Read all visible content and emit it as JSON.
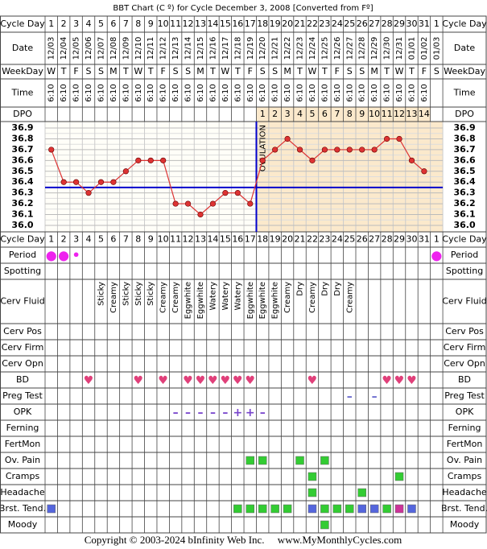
{
  "title": "BBT Chart (C º) for Cycle December 3, 2008  [Converted from Fº]",
  "labels": {
    "cycle_day": "Cycle Day",
    "date": "Date",
    "weekday": "WeekDay",
    "time": "Time",
    "dpo": "DPO"
  },
  "cycle_days": [
    1,
    2,
    3,
    4,
    5,
    6,
    7,
    8,
    9,
    10,
    11,
    12,
    13,
    14,
    15,
    16,
    17,
    18,
    19,
    20,
    21,
    22,
    23,
    24,
    25,
    26,
    27,
    28,
    29,
    30,
    31,
    1
  ],
  "dates": [
    "12/03",
    "12/04",
    "12/05",
    "12/06",
    "12/07",
    "12/08",
    "12/09",
    "12/10",
    "12/11",
    "12/12",
    "12/13",
    "12/14",
    "12/15",
    "12/16",
    "12/17",
    "12/18",
    "12/19",
    "12/20",
    "12/21",
    "12/22",
    "12/23",
    "12/24",
    "12/25",
    "12/26",
    "12/27",
    "12/28",
    "12/29",
    "12/30",
    "12/31",
    "01/01",
    "01/02",
    "01/03"
  ],
  "weekdays": [
    "W",
    "T",
    "F",
    "S",
    "S",
    "M",
    "T",
    "W",
    "T",
    "F",
    "S",
    "S",
    "M",
    "T",
    "W",
    "T",
    "F",
    "S",
    "S",
    "M",
    "T",
    "W",
    "T",
    "F",
    "S",
    "S",
    "M",
    "T",
    "W",
    "T",
    "F",
    "S"
  ],
  "times": [
    "6:10",
    "6:10",
    "6:10",
    "6:10",
    "6:10",
    "6:10",
    "6:10",
    "6:10",
    "6:10",
    "6:10",
    "6:10",
    "6:10",
    "6:10",
    "6:10",
    "6:10",
    "6:10",
    "6:10",
    "6:10",
    "6:10",
    "6:10",
    "6:10",
    "6:10",
    "6:10",
    "6:10",
    "6:10",
    "6:10",
    "6:10",
    "6:10",
    "6:10",
    "6:10",
    "6:10",
    null
  ],
  "dpo": [
    null,
    null,
    null,
    null,
    null,
    null,
    null,
    null,
    null,
    null,
    null,
    null,
    null,
    null,
    null,
    null,
    null,
    1,
    2,
    3,
    4,
    5,
    6,
    7,
    8,
    9,
    10,
    11,
    12,
    13,
    14,
    null
  ],
  "chart_data": {
    "type": "line",
    "color": "#dd3333",
    "values": [
      36.7,
      36.4,
      36.4,
      36.3,
      36.4,
      36.4,
      36.5,
      36.6,
      36.6,
      36.6,
      36.2,
      36.2,
      36.1,
      36.2,
      36.3,
      36.3,
      36.2,
      36.6,
      36.7,
      36.8,
      36.7,
      36.6,
      36.7,
      36.7,
      36.7,
      36.7,
      36.7,
      36.8,
      36.8,
      36.6,
      36.5,
      null
    ],
    "ylim": [
      35.94,
      36.96
    ],
    "yticks": [
      36.9,
      36.8,
      36.7,
      36.6,
      36.5,
      36.4,
      36.3,
      36.2,
      36.1,
      {
        "value": 36,
        "label": "36.0"
      }
    ],
    "grid": true,
    "coverline": 36.35,
    "coverline_color": "#0000cc",
    "ovulation_day": 17,
    "ovulation_label": "OVULATION",
    "luteal_color": "#fbe9cc"
  },
  "rows": [
    {
      "label": "Period",
      "color": "#ee22ee",
      "symbols": [
        "●",
        "●",
        "•",
        null,
        null,
        null,
        null,
        null,
        null,
        null,
        null,
        null,
        null,
        null,
        null,
        null,
        null,
        null,
        null,
        null,
        null,
        null,
        null,
        null,
        null,
        null,
        null,
        null,
        null,
        null,
        null,
        "●"
      ]
    },
    {
      "label": "Spotting"
    },
    {
      "label": "Cerv Fluid",
      "texts": [
        null,
        null,
        null,
        null,
        "Sticky",
        "Creamy",
        "Sticky",
        "Sticky",
        "Sticky",
        "Creamy",
        "Creamy",
        "Eggwhite",
        "Eggwhite",
        "Watery",
        "Watery",
        "Watery",
        "Eggwhite",
        "Eggwhite",
        "Eggwhite",
        "Creamy",
        "Dry",
        "Creamy",
        "Dry",
        "Dry",
        "Creamy",
        null,
        null,
        null,
        null,
        null,
        null,
        null
      ]
    },
    {
      "label": "Cerv Pos"
    },
    {
      "label": "Cerv Firm"
    },
    {
      "label": "Cerv Opn"
    },
    {
      "label": "BD",
      "color": "#e0407a",
      "symbols": [
        null,
        null,
        null,
        "♥",
        null,
        null,
        null,
        "♥",
        null,
        "♥",
        null,
        "♥",
        "♥",
        "♥",
        "♥",
        "♥",
        "♥",
        null,
        null,
        null,
        null,
        "♥",
        null,
        null,
        null,
        null,
        null,
        "♥",
        "♥",
        "♥",
        null,
        null
      ]
    },
    {
      "label": "Preg Test",
      "color": "#6666cc",
      "symbols": [
        null,
        null,
        null,
        null,
        null,
        null,
        null,
        null,
        null,
        null,
        null,
        null,
        null,
        null,
        null,
        null,
        null,
        null,
        null,
        null,
        null,
        null,
        null,
        null,
        "–",
        null,
        "–",
        null,
        null,
        null,
        null,
        null
      ]
    },
    {
      "label": "OPK",
      "color": "#7744cc",
      "symbols": [
        null,
        null,
        null,
        null,
        null,
        null,
        null,
        null,
        null,
        null,
        "–",
        "–",
        "–",
        "–",
        "–",
        "+",
        "+",
        "–",
        null,
        null,
        null,
        null,
        null,
        null,
        null,
        null,
        null,
        null,
        null,
        null,
        null,
        null
      ]
    },
    {
      "label": "Ferning"
    },
    {
      "label": "FertMon"
    },
    {
      "label": "Ov. Pain",
      "squares": [
        null,
        null,
        null,
        null,
        null,
        null,
        null,
        null,
        null,
        null,
        null,
        null,
        null,
        null,
        null,
        null,
        "#33cc33",
        "#33cc33",
        null,
        null,
        "#33cc33",
        null,
        "#33cc33",
        null,
        null,
        null,
        null,
        null,
        null,
        null,
        null,
        null
      ]
    },
    {
      "label": "Cramps",
      "squares": [
        null,
        null,
        null,
        null,
        null,
        null,
        null,
        null,
        null,
        null,
        null,
        null,
        null,
        null,
        null,
        null,
        null,
        null,
        null,
        null,
        null,
        "#33cc33",
        null,
        null,
        null,
        null,
        null,
        null,
        "#33cc33",
        null,
        null,
        null
      ]
    },
    {
      "label": "Headache",
      "squares": [
        null,
        null,
        null,
        null,
        null,
        null,
        null,
        null,
        null,
        null,
        null,
        null,
        null,
        null,
        null,
        null,
        null,
        null,
        null,
        null,
        null,
        "#33cc33",
        null,
        null,
        null,
        "#33cc33",
        null,
        null,
        null,
        null,
        null,
        null
      ]
    },
    {
      "label": "Brst. Tend.",
      "squares": [
        "#5566dd",
        null,
        null,
        null,
        null,
        null,
        null,
        null,
        null,
        null,
        null,
        null,
        null,
        null,
        null,
        "#33cc33",
        "#33cc33",
        "#33cc33",
        "#33cc33",
        "#33cc33",
        null,
        "#5566dd",
        "#33cc33",
        "#33cc33",
        "#33cc33",
        "#5566dd",
        "#5566dd",
        "#33cc33",
        "#cc3399",
        "#5566dd",
        null,
        null
      ]
    },
    {
      "label": "Moody",
      "squares": [
        null,
        null,
        null,
        null,
        null,
        null,
        null,
        null,
        null,
        null,
        null,
        null,
        null,
        null,
        null,
        null,
        null,
        null,
        null,
        null,
        null,
        null,
        "#33cc33",
        null,
        null,
        null,
        null,
        null,
        null,
        null,
        null,
        null
      ]
    }
  ],
  "footer": "Copyright © 2003-2024 bInfinity Web Inc.     www.MyMonthlyCycles.com"
}
